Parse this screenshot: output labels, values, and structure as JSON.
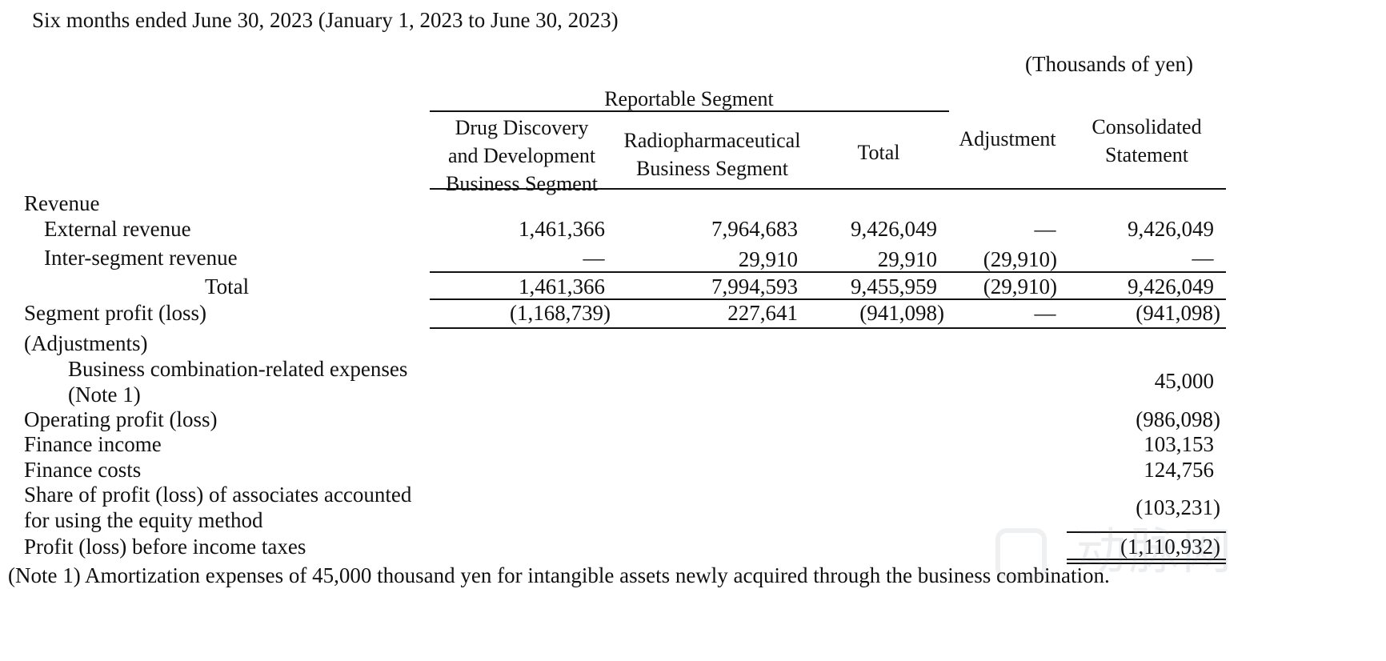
{
  "doc": {
    "period_title": "Six months ended June 30, 2023 (January 1, 2023 to June 30, 2023)",
    "unit": "(Thousands of yen)",
    "footnote": "(Note 1) Amortization expenses of 45,000 thousand yen for intangible assets newly acquired through the business combination."
  },
  "header": {
    "group": "Reportable Segment",
    "drug_line1": "Drug Discovery",
    "drug_line2": "and Development",
    "drug_line3": "Business Segment",
    "radio_line1": "Radiopharmaceutical",
    "radio_line2": "Business Segment",
    "total": "Total",
    "adjustment": "Adjustment",
    "consolidated_line1": "Consolidated",
    "consolidated_line2": "Statement"
  },
  "rows": {
    "revenue": {
      "label": "Revenue"
    },
    "external": {
      "label": "External revenue",
      "drug": "1,461,366",
      "radio": "7,964,683",
      "total": "9,426,049",
      "adj": "—",
      "cons": "9,426,049"
    },
    "inter": {
      "label": "Inter-segment revenue",
      "drug": "—",
      "radio": "29,910",
      "total": "29,910",
      "adj": "(29,910)",
      "cons": "—"
    },
    "rev_total": {
      "label": "Total",
      "drug": "1,461,366",
      "radio": "7,994,593",
      "total": "9,455,959",
      "adj": "(29,910)",
      "cons": "9,426,049"
    },
    "seg_profit": {
      "label": "Segment profit (loss)",
      "drug": "(1,168,739)",
      "radio": "227,641",
      "total": "(941,098)",
      "adj": "—",
      "cons": "(941,098)"
    },
    "adjustments": {
      "label": "(Adjustments)"
    },
    "biz_comb": {
      "label_line1": "Business combination-related expenses",
      "label_line2": "(Note 1)",
      "cons": "45,000"
    },
    "op_profit": {
      "label": "Operating profit (loss)",
      "cons": "(986,098)"
    },
    "fin_income": {
      "label": "Finance income",
      "cons": "103,153"
    },
    "fin_costs": {
      "label": "Finance costs",
      "cons": "124,756"
    },
    "share_assoc": {
      "label_line1": "Share of profit (loss) of associates accounted",
      "label_line2": "for using the equity method",
      "cons": "(103,231)"
    },
    "pbt": {
      "label": "Profit (loss) before income taxes",
      "cons": "(1,110,932)"
    }
  },
  "watermark": {
    "text": "动脉网"
  }
}
